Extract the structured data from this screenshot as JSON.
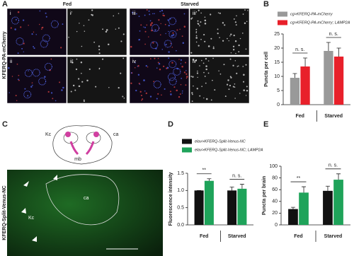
{
  "panel_a": {
    "label": "A",
    "columns": [
      "Fed",
      "Starved"
    ],
    "row_label": "KFERQ-PA-mCherry",
    "tiles": [
      "i",
      "i'",
      "iii",
      "iii'",
      "ii",
      "ii'",
      "iv",
      "iv'"
    ]
  },
  "panel_c": {
    "label": "C",
    "diagram_labels": [
      "Kc",
      "ca",
      "mb"
    ],
    "image_labels": [
      "Kc",
      "ca"
    ],
    "row_label": "KFERQ-Split-Venus-NC"
  },
  "chart_data": [
    {
      "type": "bar",
      "panel": "B",
      "ylabel": "Puncta per cell",
      "categories": [
        "Fed",
        "Starved"
      ],
      "series": [
        {
          "name": "cg>KFERQ-PA-mCherry",
          "color": "#999999",
          "values": [
            9.5,
            19
          ],
          "errors": [
            1.5,
            3
          ]
        },
        {
          "name": "cg>KFERQ-PA-mCherry; LAMP2A",
          "color": "#e8202a",
          "values": [
            13.5,
            17
          ],
          "errors": [
            3,
            3
          ]
        }
      ],
      "annotations": [
        "n. s.",
        "n. s."
      ],
      "ylim": [
        0,
        25
      ],
      "yticks": [
        0,
        5,
        10,
        15,
        20,
        25
      ]
    },
    {
      "type": "bar",
      "panel": "D",
      "ylabel": "Fluorescence intensity",
      "categories": [
        "Fed",
        "Starved"
      ],
      "series": [
        {
          "name": "elav>KFERQ-Split-Venus-NC",
          "color": "#111111",
          "values": [
            1.0,
            1.0
          ],
          "errors": [
            0,
            0.1
          ]
        },
        {
          "name": "elav>KFERQ-Split-Venus-NC; LAMP2A",
          "color": "#1fa35a",
          "values": [
            1.28,
            1.05
          ],
          "errors": [
            0.06,
            0.13
          ]
        }
      ],
      "annotations": [
        "**",
        "n. s."
      ],
      "ylim": [
        0,
        1.5
      ],
      "yticks": [
        {
          "value": 0,
          "label": "0.0"
        },
        {
          "value": 0.5,
          "label": "0.5"
        },
        {
          "value": 1,
          "label": "1.0"
        },
        {
          "value": 1.5,
          "label": "1.5"
        }
      ]
    },
    {
      "type": "bar",
      "panel": "E",
      "ylabel": "Puncta per brain",
      "categories": [
        "Fed",
        "Starved"
      ],
      "series": [
        {
          "color": "#111111",
          "values": [
            27,
            58
          ],
          "errors": [
            3,
            8
          ]
        },
        {
          "color": "#1fa35a",
          "values": [
            55,
            77
          ],
          "errors": [
            10,
            10
          ]
        }
      ],
      "annotations": [
        "**",
        "n. s."
      ],
      "ylim": [
        0,
        100
      ],
      "yticks": [
        0,
        20,
        40,
        60,
        80,
        100
      ]
    }
  ]
}
